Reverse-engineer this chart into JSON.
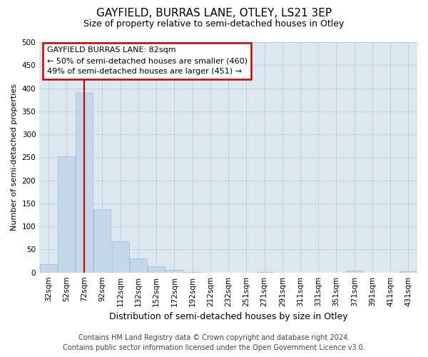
{
  "title": "GAYFIELD, BURRAS LANE, OTLEY, LS21 3EP",
  "subtitle": "Size of property relative to semi-detached houses in Otley",
  "xlabel": "Distribution of semi-detached houses by size in Otley",
  "ylabel": "Number of semi-detached properties",
  "footer_line1": "Contains HM Land Registry data © Crown copyright and database right 2024.",
  "footer_line2": "Contains public sector information licensed under the Open Government Licence v3.0.",
  "annotation_title": "GAYFIELD BURRAS LANE: 82sqm",
  "annotation_line1": "← 50% of semi-detached houses are smaller (460)",
  "annotation_line2": "49% of semi-detached houses are larger (451) →",
  "categories": [
    "32sqm",
    "52sqm",
    "72sqm",
    "92sqm",
    "112sqm",
    "132sqm",
    "152sqm",
    "172sqm",
    "192sqm",
    "212sqm",
    "232sqm",
    "251sqm",
    "271sqm",
    "291sqm",
    "311sqm",
    "331sqm",
    "351sqm",
    "371sqm",
    "391sqm",
    "411sqm",
    "431sqm"
  ],
  "values": [
    18,
    252,
    390,
    138,
    68,
    30,
    14,
    6,
    1,
    0,
    0,
    0,
    1,
    0,
    0,
    0,
    0,
    4,
    0,
    0,
    3
  ],
  "bar_color": "#c5d8ea",
  "bar_edge_color": "#a8c0d6",
  "vline_color": "#cc0000",
  "vline_position": 2.0,
  "ylim": [
    0,
    500
  ],
  "yticks": [
    0,
    50,
    100,
    150,
    200,
    250,
    300,
    350,
    400,
    450,
    500
  ],
  "annotation_box_facecolor": "#ffffff",
  "annotation_box_edgecolor": "#cc0000",
  "plot_bg_color": "#dce8f0",
  "fig_bg_color": "#ffffff",
  "grid_color": "#b8cdd8",
  "title_fontsize": 11,
  "subtitle_fontsize": 9,
  "ylabel_fontsize": 8,
  "xlabel_fontsize": 9,
  "tick_fontsize": 7.5,
  "footer_fontsize": 7,
  "annotation_fontsize": 8
}
